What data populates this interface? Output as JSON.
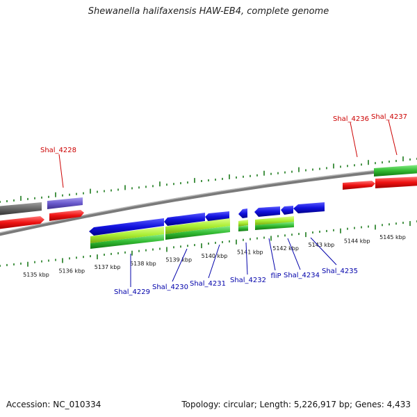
{
  "title": "Shewanella halifaxensis HAW-EB4, complete genome",
  "accession": "Accession: NC_010334",
  "info": "Topology: circular; Length: 5,226,917 bp; Genes: 4,433",
  "colors": {
    "tick": "#1a7a1a",
    "backbone": "#808080",
    "label_top": "#cc0000",
    "label_bottom": "#0000aa",
    "gene_blue": "#1111dd",
    "gene_red": "#ee1111",
    "gene_green": "#33bb33",
    "gene_lime": "#aaee33",
    "gene_purple": "#6a5acd",
    "gene_gray": "#666666"
  },
  "scale": {
    "unit": "kbp",
    "labels": [
      "5135 kbp",
      "5136 kbp",
      "5137 kbp",
      "5138 kbp",
      "5139 kbp",
      "5140 kbp",
      "5141 kbp",
      "5142 kbp",
      "5143 kbp",
      "5144 kbp",
      "5145 kbp"
    ]
  },
  "genes_top": [
    {
      "label": "Shal_4228"
    },
    {
      "label": "Shal_4236"
    },
    {
      "label": "Shal_4237"
    }
  ],
  "genes_bottom": [
    {
      "label": "Shal_4229"
    },
    {
      "label": "Shal_4230"
    },
    {
      "label": "Shal_4231"
    },
    {
      "label": "Shal_4232"
    },
    {
      "label": "fliP"
    },
    {
      "label": "Shal_4234"
    },
    {
      "label": "Shal_4235"
    }
  ]
}
